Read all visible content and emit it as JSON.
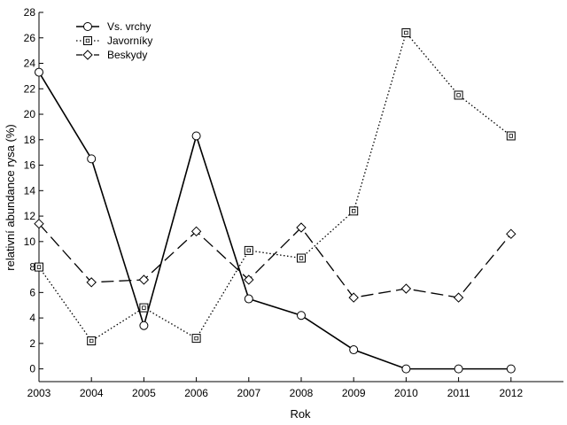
{
  "chart_data": {
    "type": "line",
    "title": "",
    "xlabel": "Rok",
    "ylabel": "relativní abundance rysa (%)",
    "x": [
      2003,
      2004,
      2005,
      2006,
      2007,
      2008,
      2009,
      2010,
      2011,
      2012
    ],
    "xlim": [
      2003,
      2013
    ],
    "ylim": [
      -1,
      28
    ],
    "yticks": [
      0,
      2,
      4,
      6,
      8,
      10,
      12,
      14,
      16,
      18,
      20,
      22,
      24,
      26,
      28
    ],
    "grid": false,
    "legend_position": "top-left",
    "series": [
      {
        "name": "Vs. vrchy",
        "marker": "circle",
        "line_style": "solid",
        "values": [
          23.3,
          16.5,
          3.4,
          18.3,
          5.5,
          4.2,
          1.5,
          0,
          0,
          0
        ]
      },
      {
        "name": "Javorníky",
        "marker": "square",
        "line_style": "dotted",
        "values": [
          8.0,
          2.2,
          4.8,
          2.4,
          9.3,
          8.7,
          12.4,
          26.4,
          21.5,
          18.3
        ]
      },
      {
        "name": "Beskydy",
        "marker": "diamond",
        "line_style": "dashed",
        "values": [
          11.4,
          6.8,
          7.0,
          10.8,
          7.0,
          11.1,
          5.6,
          6.3,
          5.6,
          10.6
        ]
      }
    ]
  }
}
